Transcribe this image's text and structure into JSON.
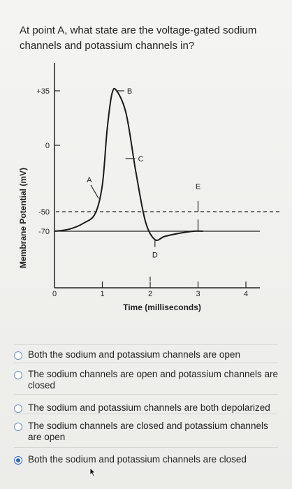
{
  "question": "At point A, what state are the voltage-gated sodium channels and potassium channels in?",
  "chart": {
    "ylabel": "Membrane Potential (mV)",
    "xlabel": "Time (milliseconds)",
    "y_ticks": [
      "+35",
      "0",
      "-50",
      "-70"
    ],
    "x_ticks": [
      "0",
      "1",
      "2",
      "3",
      "4"
    ],
    "points": [
      "A",
      "B",
      "C",
      "D",
      "E"
    ]
  },
  "chart_data": {
    "type": "line",
    "xlabel": "Time (milliseconds)",
    "ylabel": "Membrane Potential (mV)",
    "x_ticks": [
      0,
      1,
      2,
      3,
      4
    ],
    "y_ticks": [
      35,
      0,
      -50,
      -70
    ],
    "xlim": [
      0,
      4.3
    ],
    "ylim": [
      -100,
      50
    ],
    "threshold_line_mV": -50,
    "resting_line_mV": -70,
    "series": [
      {
        "x": [
          0,
          0.3,
          0.6,
          0.85,
          1.0,
          1.1,
          1.2,
          1.3,
          1.5,
          1.7,
          1.9,
          2.1,
          2.3,
          2.6,
          2.9,
          3.1
        ],
        "y": [
          -70,
          -68,
          -62,
          -52,
          -30,
          10,
          33,
          35,
          20,
          -20,
          -60,
          -78,
          -75,
          -72,
          -70,
          -70
        ]
      }
    ],
    "annotations": [
      {
        "label": "A",
        "x": 0.95,
        "y": -45
      },
      {
        "label": "B",
        "x": 1.4,
        "y": 35
      },
      {
        "label": "C",
        "x": 1.6,
        "y": -10
      },
      {
        "label": "D",
        "x": 2.1,
        "y": -88
      },
      {
        "label": "E",
        "x": 3.0,
        "y": -50
      }
    ]
  },
  "options": [
    {
      "label": "Both the sodium and potassium channels are open",
      "selected": false
    },
    {
      "label": "The sodium channels are open and potassium channels are closed",
      "selected": false
    },
    {
      "label": "The sodium and potassium channels are both depolarized",
      "selected": false
    },
    {
      "label": "The sodium channels are closed and potassium channels are open",
      "selected": false
    },
    {
      "label": "Both the sodium and potassium channels are closed",
      "selected": true
    }
  ]
}
